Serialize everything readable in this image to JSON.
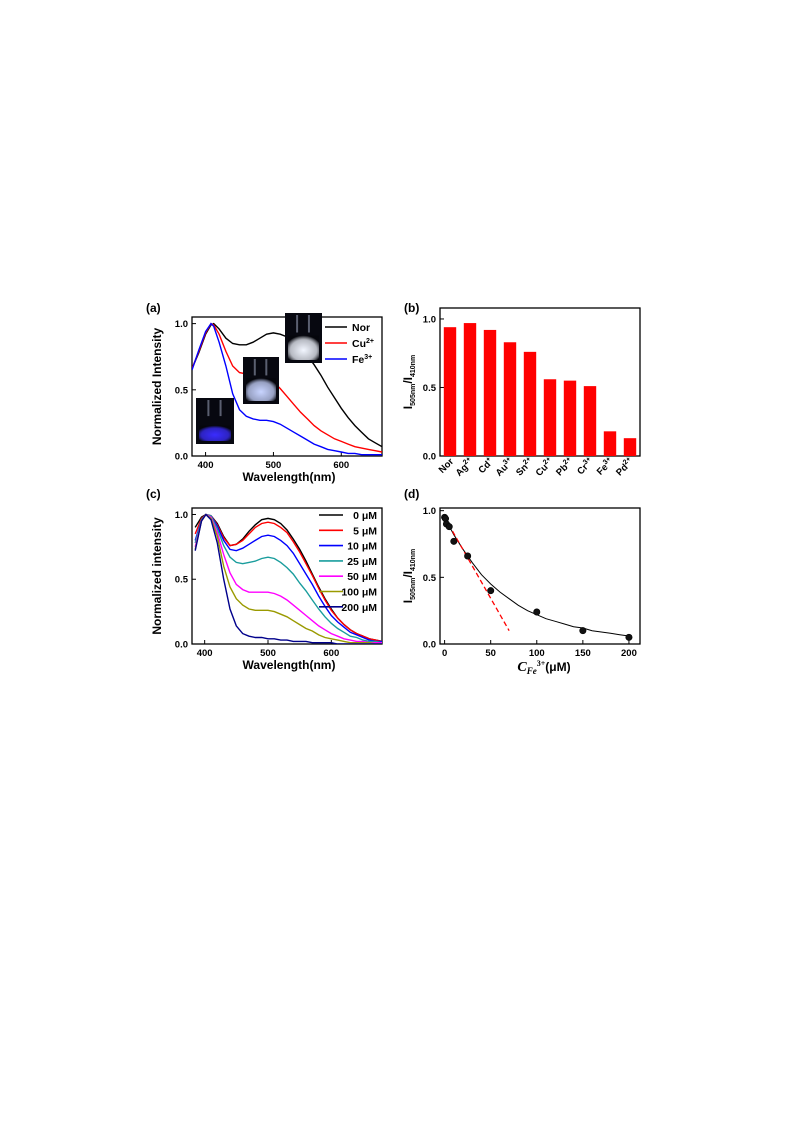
{
  "chart_data": [
    {
      "panel": "(a)",
      "type": "line",
      "xlabel": "Wavelength(nm)",
      "ylabel": "Normalized Intensity",
      "xlim": [
        380,
        660
      ],
      "ylim": [
        0,
        1.05
      ],
      "xticks": [
        400,
        500,
        600
      ],
      "yticks": [
        0.0,
        0.5,
        1.0
      ],
      "ytick_labels": [
        "0.0",
        "0.5",
        "1.0"
      ],
      "legend_position": "top-right",
      "series": [
        {
          "name": "Nor",
          "name_base": "Nor",
          "name_sup": "",
          "color": "#000000",
          "x": [
            380,
            390,
            400,
            408,
            412,
            420,
            430,
            440,
            450,
            460,
            470,
            480,
            490,
            500,
            510,
            520,
            530,
            540,
            550,
            560,
            570,
            580,
            590,
            600,
            610,
            620,
            630,
            640,
            650,
            660
          ],
          "y": [
            0.66,
            0.78,
            0.92,
            0.99,
            1.0,
            0.96,
            0.89,
            0.85,
            0.84,
            0.84,
            0.86,
            0.89,
            0.92,
            0.93,
            0.92,
            0.9,
            0.87,
            0.83,
            0.76,
            0.69,
            0.61,
            0.52,
            0.44,
            0.36,
            0.29,
            0.23,
            0.18,
            0.13,
            0.1,
            0.07
          ]
        },
        {
          "name": "Cu2+",
          "name_base": "Cu",
          "name_sup": "2+",
          "color": "#ff0000",
          "x": [
            380,
            390,
            400,
            408,
            412,
            420,
            430,
            440,
            450,
            460,
            470,
            480,
            490,
            500,
            510,
            520,
            530,
            540,
            550,
            560,
            570,
            580,
            590,
            600,
            610,
            620,
            630,
            640,
            650,
            660
          ],
          "y": [
            0.66,
            0.79,
            0.93,
            1.0,
            0.99,
            0.92,
            0.79,
            0.68,
            0.63,
            0.62,
            0.62,
            0.62,
            0.6,
            0.56,
            0.51,
            0.45,
            0.39,
            0.33,
            0.28,
            0.23,
            0.19,
            0.16,
            0.13,
            0.11,
            0.09,
            0.07,
            0.06,
            0.05,
            0.04,
            0.03
          ]
        },
        {
          "name": "Fe3+",
          "name_base": "Fe",
          "name_sup": "3+",
          "color": "#0000ff",
          "x": [
            380,
            390,
            400,
            408,
            412,
            420,
            430,
            440,
            450,
            460,
            470,
            480,
            490,
            500,
            510,
            520,
            530,
            540,
            550,
            560,
            570,
            580,
            590,
            600,
            610,
            620,
            630,
            640,
            650,
            660
          ],
          "y": [
            0.65,
            0.8,
            0.94,
            1.0,
            0.98,
            0.86,
            0.68,
            0.47,
            0.35,
            0.3,
            0.28,
            0.27,
            0.27,
            0.26,
            0.24,
            0.21,
            0.18,
            0.15,
            0.12,
            0.09,
            0.07,
            0.05,
            0.04,
            0.03,
            0.02,
            0.02,
            0.01,
            0.01,
            0.01,
            0.01
          ]
        }
      ]
    },
    {
      "panel": "(b)",
      "type": "bar",
      "ylabel_base": "I",
      "ylabel_sub1": "505nm",
      "ylabel_mid": "/I",
      "ylabel_sub2": "410nm",
      "ylim": [
        0,
        1.0
      ],
      "yticks": [
        0.0,
        0.5,
        1.0
      ],
      "ytick_labels": [
        "0.0",
        "0.5",
        "1.0"
      ],
      "bar_color": "#ff0000",
      "categories": [
        {
          "base": "Nor",
          "sup": ""
        },
        {
          "base": "Ag",
          "sup": "2+"
        },
        {
          "base": "Cd",
          "sup": "+"
        },
        {
          "base": "Au",
          "sup": "3+"
        },
        {
          "base": "Sn",
          "sup": "2+"
        },
        {
          "base": "Cu",
          "sup": "2+"
        },
        {
          "base": "Pb",
          "sup": "2+"
        },
        {
          "base": "Cr",
          "sup": "3+"
        },
        {
          "base": "Fe",
          "sup": "3+"
        },
        {
          "base": "Pd",
          "sup": "2+"
        }
      ],
      "values": [
        0.94,
        0.97,
        0.92,
        0.83,
        0.76,
        0.56,
        0.55,
        0.51,
        0.18,
        0.13
      ]
    },
    {
      "panel": "(c)",
      "type": "line",
      "xlabel": "Wavelength(nm)",
      "ylabel": "Normalized intensity",
      "xlim": [
        380,
        680
      ],
      "ylim": [
        0,
        1.05
      ],
      "xticks": [
        400,
        500,
        600
      ],
      "yticks": [
        0.0,
        0.5,
        1.0
      ],
      "ytick_labels": [
        "0.0",
        "0.5",
        "1.0"
      ],
      "legend_position": "top-right",
      "series": [
        {
          "name": "0 μM",
          "color": "#000000",
          "x": [
            385,
            395,
            402,
            410,
            420,
            430,
            440,
            450,
            460,
            470,
            480,
            490,
            500,
            510,
            520,
            530,
            540,
            550,
            560,
            570,
            580,
            590,
            600,
            610,
            620,
            630,
            640,
            650,
            660,
            670,
            680
          ],
          "y": [
            0.9,
            0.98,
            1.0,
            0.99,
            0.93,
            0.83,
            0.76,
            0.77,
            0.81,
            0.87,
            0.92,
            0.96,
            0.97,
            0.96,
            0.93,
            0.88,
            0.81,
            0.73,
            0.64,
            0.54,
            0.44,
            0.35,
            0.27,
            0.2,
            0.15,
            0.11,
            0.08,
            0.06,
            0.04,
            0.03,
            0.02
          ]
        },
        {
          "name": "5 μM",
          "color": "#ff0000",
          "x": [
            385,
            395,
            402,
            410,
            420,
            430,
            440,
            450,
            460,
            470,
            480,
            490,
            500,
            510,
            520,
            530,
            540,
            550,
            560,
            570,
            580,
            590,
            600,
            610,
            620,
            630,
            640,
            650,
            660,
            670,
            680
          ],
          "y": [
            0.85,
            0.97,
            1.0,
            0.99,
            0.92,
            0.82,
            0.76,
            0.77,
            0.8,
            0.85,
            0.9,
            0.93,
            0.94,
            0.93,
            0.9,
            0.86,
            0.79,
            0.71,
            0.62,
            0.53,
            0.43,
            0.34,
            0.26,
            0.2,
            0.15,
            0.11,
            0.08,
            0.06,
            0.04,
            0.03,
            0.02
          ]
        },
        {
          "name": "10 μM",
          "color": "#0000ff",
          "x": [
            385,
            395,
            402,
            410,
            420,
            430,
            440,
            450,
            460,
            470,
            480,
            490,
            500,
            510,
            520,
            530,
            540,
            550,
            560,
            570,
            580,
            590,
            600,
            610,
            620,
            630,
            640,
            650,
            660,
            670,
            680
          ],
          "y": [
            0.8,
            0.96,
            1.0,
            0.99,
            0.91,
            0.8,
            0.73,
            0.72,
            0.74,
            0.77,
            0.8,
            0.83,
            0.84,
            0.83,
            0.8,
            0.76,
            0.7,
            0.62,
            0.54,
            0.46,
            0.37,
            0.29,
            0.22,
            0.17,
            0.13,
            0.09,
            0.07,
            0.05,
            0.03,
            0.02,
            0.02
          ]
        },
        {
          "name": "25 μM",
          "color": "#1a9d9d",
          "x": [
            385,
            395,
            402,
            410,
            420,
            430,
            440,
            450,
            460,
            470,
            480,
            490,
            500,
            510,
            520,
            530,
            540,
            550,
            560,
            570,
            580,
            590,
            600,
            610,
            620,
            630,
            640,
            650,
            660,
            670,
            680
          ],
          "y": [
            0.78,
            0.96,
            1.0,
            0.99,
            0.89,
            0.76,
            0.67,
            0.63,
            0.62,
            0.63,
            0.64,
            0.66,
            0.67,
            0.66,
            0.63,
            0.59,
            0.54,
            0.47,
            0.41,
            0.34,
            0.27,
            0.21,
            0.16,
            0.12,
            0.09,
            0.06,
            0.05,
            0.03,
            0.02,
            0.02,
            0.01
          ]
        },
        {
          "name": "50 μM",
          "color": "#ff00ff",
          "x": [
            385,
            395,
            402,
            410,
            420,
            430,
            440,
            450,
            460,
            470,
            480,
            490,
            500,
            510,
            520,
            530,
            540,
            550,
            560,
            570,
            580,
            590,
            600,
            610,
            620,
            630,
            640,
            650,
            660,
            670,
            680
          ],
          "y": [
            0.75,
            0.95,
            1.0,
            0.98,
            0.86,
            0.69,
            0.55,
            0.46,
            0.42,
            0.4,
            0.4,
            0.4,
            0.4,
            0.39,
            0.37,
            0.34,
            0.3,
            0.26,
            0.22,
            0.18,
            0.14,
            0.11,
            0.08,
            0.06,
            0.04,
            0.03,
            0.02,
            0.02,
            0.01,
            0.01,
            0.01
          ]
        },
        {
          "name": "100 μM",
          "color": "#9a9a00",
          "x": [
            385,
            395,
            402,
            410,
            420,
            430,
            440,
            450,
            460,
            470,
            480,
            490,
            500,
            510,
            520,
            530,
            540,
            550,
            560,
            570,
            580,
            590,
            600,
            610,
            620,
            630,
            640,
            650,
            660,
            670,
            680
          ],
          "y": [
            0.73,
            0.95,
            1.0,
            0.97,
            0.83,
            0.6,
            0.44,
            0.35,
            0.3,
            0.27,
            0.26,
            0.26,
            0.26,
            0.25,
            0.23,
            0.21,
            0.18,
            0.15,
            0.12,
            0.1,
            0.07,
            0.05,
            0.04,
            0.03,
            0.02,
            0.01,
            0.01,
            0.01,
            0.01,
            0.0,
            0.0
          ]
        },
        {
          "name": "200 μM",
          "color": "#00008b",
          "x": [
            385,
            395,
            402,
            410,
            420,
            430,
            440,
            450,
            460,
            470,
            480,
            490,
            500,
            510,
            520,
            530,
            540,
            550,
            560,
            570,
            580,
            590,
            600,
            610,
            620,
            630,
            640,
            650,
            660,
            670,
            680
          ],
          "y": [
            0.72,
            0.95,
            1.0,
            0.96,
            0.78,
            0.5,
            0.27,
            0.14,
            0.08,
            0.06,
            0.05,
            0.05,
            0.04,
            0.04,
            0.03,
            0.03,
            0.02,
            0.02,
            0.02,
            0.01,
            0.01,
            0.01,
            0.01,
            0.0,
            0.0,
            0.0,
            0.0,
            0.0,
            0.0,
            0.0,
            0.0
          ]
        }
      ]
    },
    {
      "panel": "(d)",
      "type": "scatter",
      "ylabel_base": "I",
      "ylabel_sub1": "505nm",
      "ylabel_mid": "/I",
      "ylabel_sub2": "410nm",
      "xlabel_base": "C",
      "xlabel_sub": "Fe",
      "xlabel_sup": "3+",
      "xlabel_unit": "(μM)",
      "xlim": [
        -5,
        212
      ],
      "ylim": [
        0,
        1.0
      ],
      "xticks": [
        0,
        50,
        100,
        150,
        200
      ],
      "yticks": [
        0.0,
        0.5,
        1.0
      ],
      "ytick_labels": [
        "0.0",
        "0.5",
        "1.0"
      ],
      "points": {
        "x": [
          0,
          1,
          2,
          5,
          10,
          25,
          50,
          100,
          150,
          200
        ],
        "y": [
          0.95,
          0.94,
          0.9,
          0.88,
          0.77,
          0.66,
          0.4,
          0.24,
          0.1,
          0.05
        ]
      },
      "fit_curve": {
        "color": "#000000",
        "x": [
          0,
          10,
          20,
          30,
          40,
          50,
          60,
          70,
          80,
          90,
          100,
          110,
          120,
          130,
          140,
          150,
          160,
          170,
          180,
          190,
          200
        ],
        "y": [
          0.95,
          0.82,
          0.71,
          0.61,
          0.52,
          0.45,
          0.39,
          0.34,
          0.29,
          0.25,
          0.22,
          0.19,
          0.17,
          0.15,
          0.13,
          0.12,
          0.1,
          0.09,
          0.08,
          0.07,
          0.06
        ]
      },
      "linear_fit": {
        "color": "#ff0000",
        "style": "dashed",
        "x": [
          0,
          70
        ],
        "y": [
          0.95,
          0.1
        ]
      }
    }
  ]
}
